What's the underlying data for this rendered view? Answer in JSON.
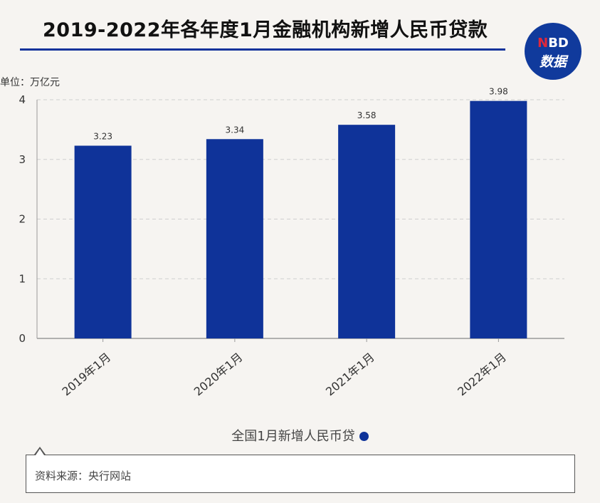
{
  "header": {
    "title": "2019-2022年各年度1月金融机构新增人民币贷款",
    "logo_top_n": "N",
    "logo_top_rest": "BD",
    "logo_bottom": "数据"
  },
  "colors": {
    "bar": "#0f3399",
    "title_rule": "#14339b",
    "background": "#f6f4f1"
  },
  "chart_data": {
    "type": "bar",
    "unit_label": "单位：万亿元",
    "categories": [
      "2019年1月",
      "2020年1月",
      "2021年1月",
      "2022年1月"
    ],
    "series": [
      {
        "name": "全国1月新增人民币贷",
        "values": [
          3.23,
          3.34,
          3.58,
          3.98
        ]
      }
    ],
    "data_labels": [
      "3.23",
      "3.34",
      "3.58",
      "3.98"
    ],
    "yticks": [
      "0",
      "1",
      "2",
      "3",
      "4"
    ],
    "ylim": [
      0,
      4
    ],
    "grid": true,
    "legend_position": "bottom-center"
  },
  "footer": {
    "source": "资料来源：央行网站"
  }
}
